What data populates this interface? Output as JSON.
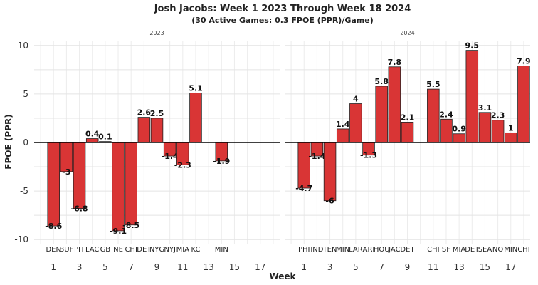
{
  "chart_data": {
    "type": "bar",
    "title": "Josh Jacobs: Week 1 2023 Through Week 18 2024",
    "subtitle": "(30 Active Games: 0.3 FPOE (PPR)/Game)",
    "xlabel": "Week",
    "ylabel": "FPOE (PPR)",
    "ylim": [
      -10.5,
      10.5
    ],
    "yticks": [
      -10,
      -5,
      0,
      5,
      10
    ],
    "xlim": [
      -0.5,
      18.5
    ],
    "xticks": [
      1,
      3,
      5,
      7,
      9,
      11,
      13,
      15,
      17
    ],
    "grid": true,
    "bar_color": "#d93535",
    "panels": [
      {
        "label": "2023",
        "bars": [
          {
            "week": 1,
            "opponent": "DEN",
            "value": -8.6
          },
          {
            "week": 2,
            "opponent": "BUF",
            "value": -3
          },
          {
            "week": 3,
            "opponent": "PIT",
            "value": -6.8
          },
          {
            "week": 4,
            "opponent": "LAC",
            "value": 0.4
          },
          {
            "week": 5,
            "opponent": "GB",
            "value": 0.1
          },
          {
            "week": 6,
            "opponent": "NE",
            "value": -9.1
          },
          {
            "week": 7,
            "opponent": "CHI",
            "value": -8.5
          },
          {
            "week": 8,
            "opponent": "DET",
            "value": 2.6
          },
          {
            "week": 9,
            "opponent": "NYG",
            "value": 2.5
          },
          {
            "week": 10,
            "opponent": "NYJ",
            "value": -1.4
          },
          {
            "week": 11,
            "opponent": "MIA",
            "value": -2.3
          },
          {
            "week": 12,
            "opponent": "KC",
            "value": 5.1
          },
          {
            "week": 14,
            "opponent": "MIN",
            "value": -1.9
          }
        ]
      },
      {
        "label": "2024",
        "bars": [
          {
            "week": 1,
            "opponent": "PHI",
            "value": -4.7
          },
          {
            "week": 2,
            "opponent": "IND",
            "value": -1.4
          },
          {
            "week": 3,
            "opponent": "TEN",
            "value": -6
          },
          {
            "week": 4,
            "opponent": "MIN",
            "value": 1.4
          },
          {
            "week": 5,
            "opponent": "LAR",
            "value": 4
          },
          {
            "week": 6,
            "opponent": "ARI",
            "value": -1.3
          },
          {
            "week": 7,
            "opponent": "HOU",
            "value": 5.8
          },
          {
            "week": 8,
            "opponent": "JAC",
            "value": 7.8
          },
          {
            "week": 9,
            "opponent": "DET",
            "value": 2.1
          },
          {
            "week": 11,
            "opponent": "CHI",
            "value": 5.5
          },
          {
            "week": 12,
            "opponent": "SF",
            "value": 2.4
          },
          {
            "week": 13,
            "opponent": "MIA",
            "value": 0.9
          },
          {
            "week": 14,
            "opponent": "DET",
            "value": 9.5
          },
          {
            "week": 15,
            "opponent": "SEA",
            "value": 3.1
          },
          {
            "week": 16,
            "opponent": "NO",
            "value": 2.3
          },
          {
            "week": 17,
            "opponent": "MIN",
            "value": 1
          },
          {
            "week": 18,
            "opponent": "CHI",
            "value": 7.9
          }
        ]
      }
    ]
  }
}
